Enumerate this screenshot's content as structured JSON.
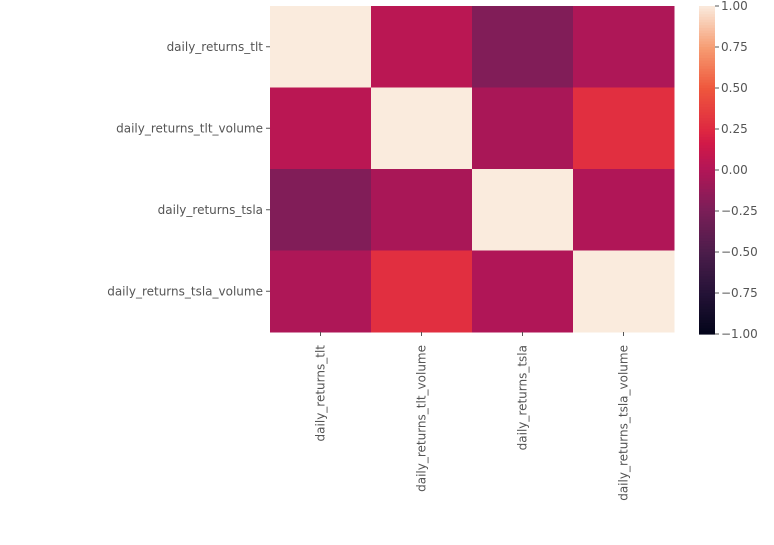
{
  "chart_data": {
    "type": "heatmap",
    "rows": [
      "daily_returns_tlt",
      "daily_returns_tlt_volume",
      "daily_returns_tsla",
      "daily_returns_tsla_volume"
    ],
    "columns": [
      "daily_returns_tlt",
      "daily_returns_tlt_volume",
      "daily_returns_tsla",
      "daily_returns_tsla_volume"
    ],
    "values": [
      [
        1.0,
        0.04,
        -0.22,
        -0.02
      ],
      [
        0.04,
        1.0,
        -0.04,
        0.28
      ],
      [
        -0.22,
        -0.04,
        1.0,
        -0.01
      ],
      [
        -0.02,
        0.28,
        -0.01,
        1.0
      ]
    ],
    "vmin": -1.0,
    "vmax": 1.0,
    "colorbar_ticks": [
      "1.00",
      "0.75",
      "0.50",
      "0.25",
      "0.00",
      "−0.25",
      "−0.50",
      "−0.75",
      "−1.00"
    ],
    "colormap": "rocket",
    "title": "",
    "xlabel": "",
    "ylabel": ""
  }
}
